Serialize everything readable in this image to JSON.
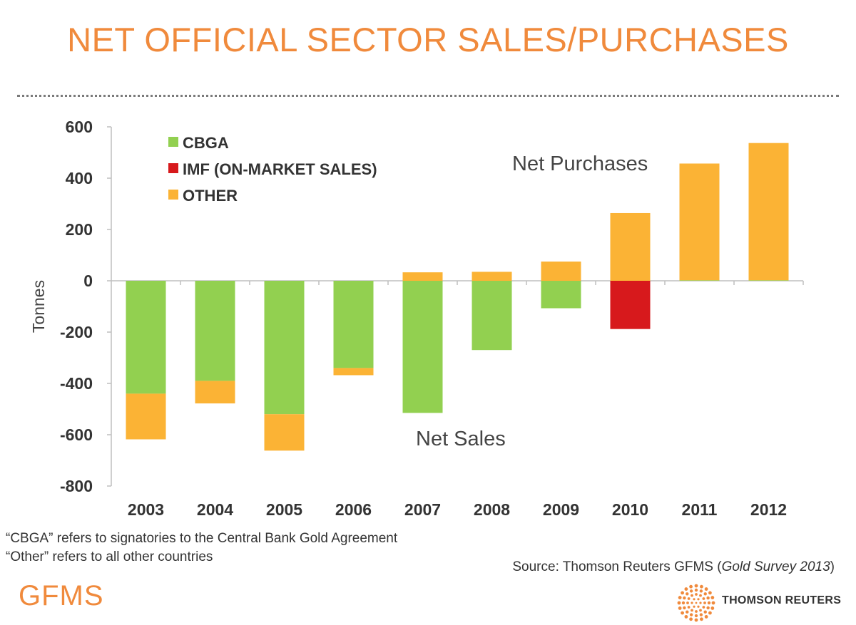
{
  "header": {
    "title": "NET OFFICIAL SECTOR SALES/PURCHASES"
  },
  "chart_data": {
    "type": "bar",
    "stacked": true,
    "categories": [
      "2003",
      "2004",
      "2005",
      "2006",
      "2007",
      "2008",
      "2009",
      "2010",
      "2011",
      "2012"
    ],
    "series": [
      {
        "name": "CBGA",
        "color": "#92d050",
        "values": [
          -440,
          -390,
          -520,
          -340,
          -515,
          -270,
          -107,
          0,
          2,
          2
        ]
      },
      {
        "name": "IMF (ON-MARKET SALES)",
        "color": "#d7191c",
        "values": [
          0,
          0,
          0,
          0,
          0,
          0,
          0,
          -188,
          0,
          0
        ]
      },
      {
        "name": "OTHER",
        "color": "#fbb335",
        "values": [
          -178,
          -88,
          -142,
          -28,
          33,
          35,
          75,
          264,
          455,
          535
        ]
      }
    ],
    "ylabel": "Tonnes",
    "ylim": [
      -800,
      600
    ],
    "yticks": [
      "600",
      "400",
      "200",
      "0",
      "-200",
      "-400",
      "-600",
      "-800"
    ],
    "legend_position": "top-left",
    "annotations": {
      "purchases": "Net Purchases",
      "sales": "Net Sales"
    }
  },
  "footnotes": [
    "“CBGA” refers to signatories to the Central Bank Gold Agreement",
    "“Other” refers to all other countries"
  ],
  "source": {
    "prefix": "Source: Thomson Reuters GFMS (",
    "italic": "Gold Survey 2013",
    "suffix": ")"
  },
  "branding": {
    "left_logo": "GFMS",
    "right_logo": "THOMSON REUTERS",
    "accent_color": "#f08a3c"
  }
}
